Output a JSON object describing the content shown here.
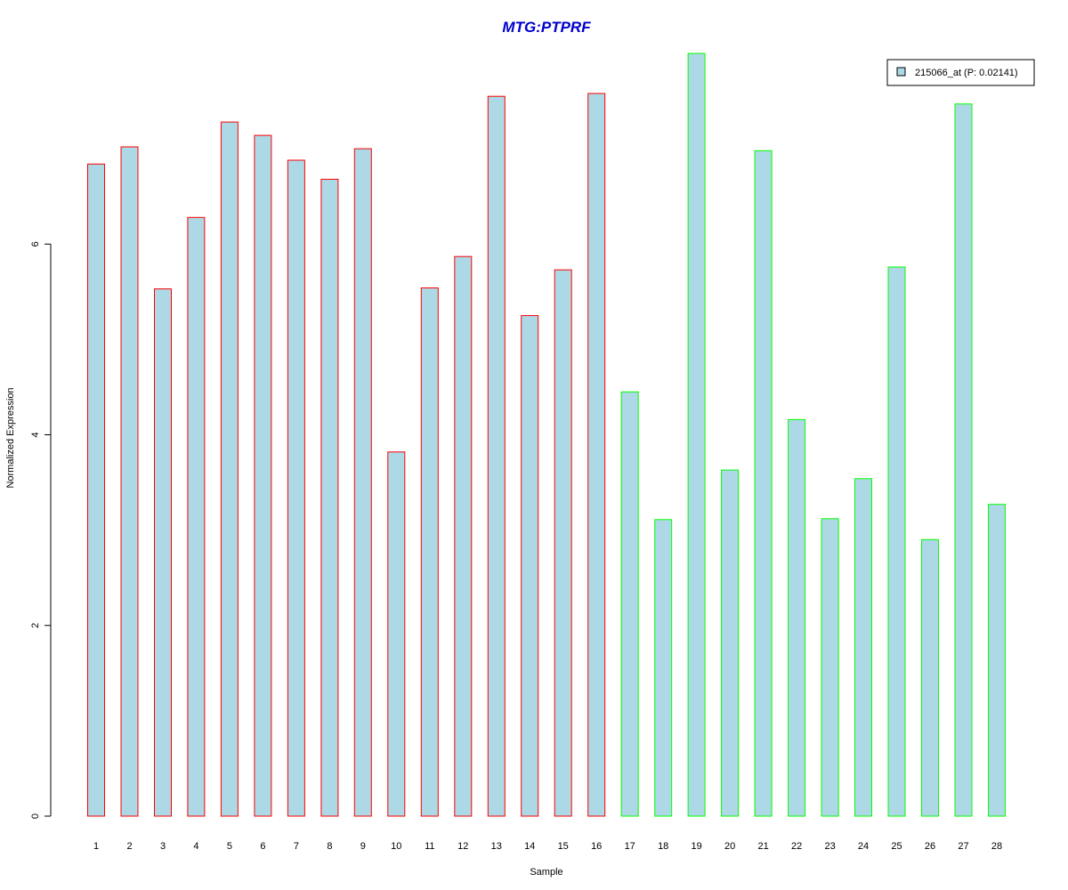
{
  "chart_data": {
    "type": "bar",
    "title": "MTG:PTPRF",
    "xlabel": "Sample",
    "ylabel": "Normalized Expression",
    "categories": [
      "1",
      "2",
      "3",
      "4",
      "5",
      "6",
      "7",
      "8",
      "9",
      "10",
      "11",
      "12",
      "13",
      "14",
      "15",
      "16",
      "17",
      "18",
      "19",
      "20",
      "21",
      "22",
      "23",
      "24",
      "25",
      "26",
      "27",
      "28"
    ],
    "series": [
      {
        "name": "215066_at (P: 0.02141)",
        "values": [
          6.84,
          7.02,
          5.53,
          6.28,
          7.28,
          7.14,
          6.88,
          6.68,
          7.0,
          3.82,
          5.54,
          5.87,
          7.55,
          5.25,
          5.73,
          7.58,
          4.45,
          3.11,
          8.0,
          3.63,
          6.98,
          4.16,
          3.12,
          3.54,
          5.76,
          2.9,
          7.47,
          3.27
        ]
      }
    ],
    "groups": [
      {
        "samples": [
          1,
          16
        ],
        "border_color": "#ff0000"
      },
      {
        "samples": [
          17,
          28
        ],
        "border_color": "#00ff00"
      }
    ],
    "yticks": [
      0,
      2,
      4,
      6
    ],
    "ylim": [
      0,
      8
    ],
    "legend_position": "top-right",
    "grid": false
  },
  "colors": {
    "bar_fill": "#add8e6",
    "title": "#0000cd",
    "axis": "#000000"
  }
}
